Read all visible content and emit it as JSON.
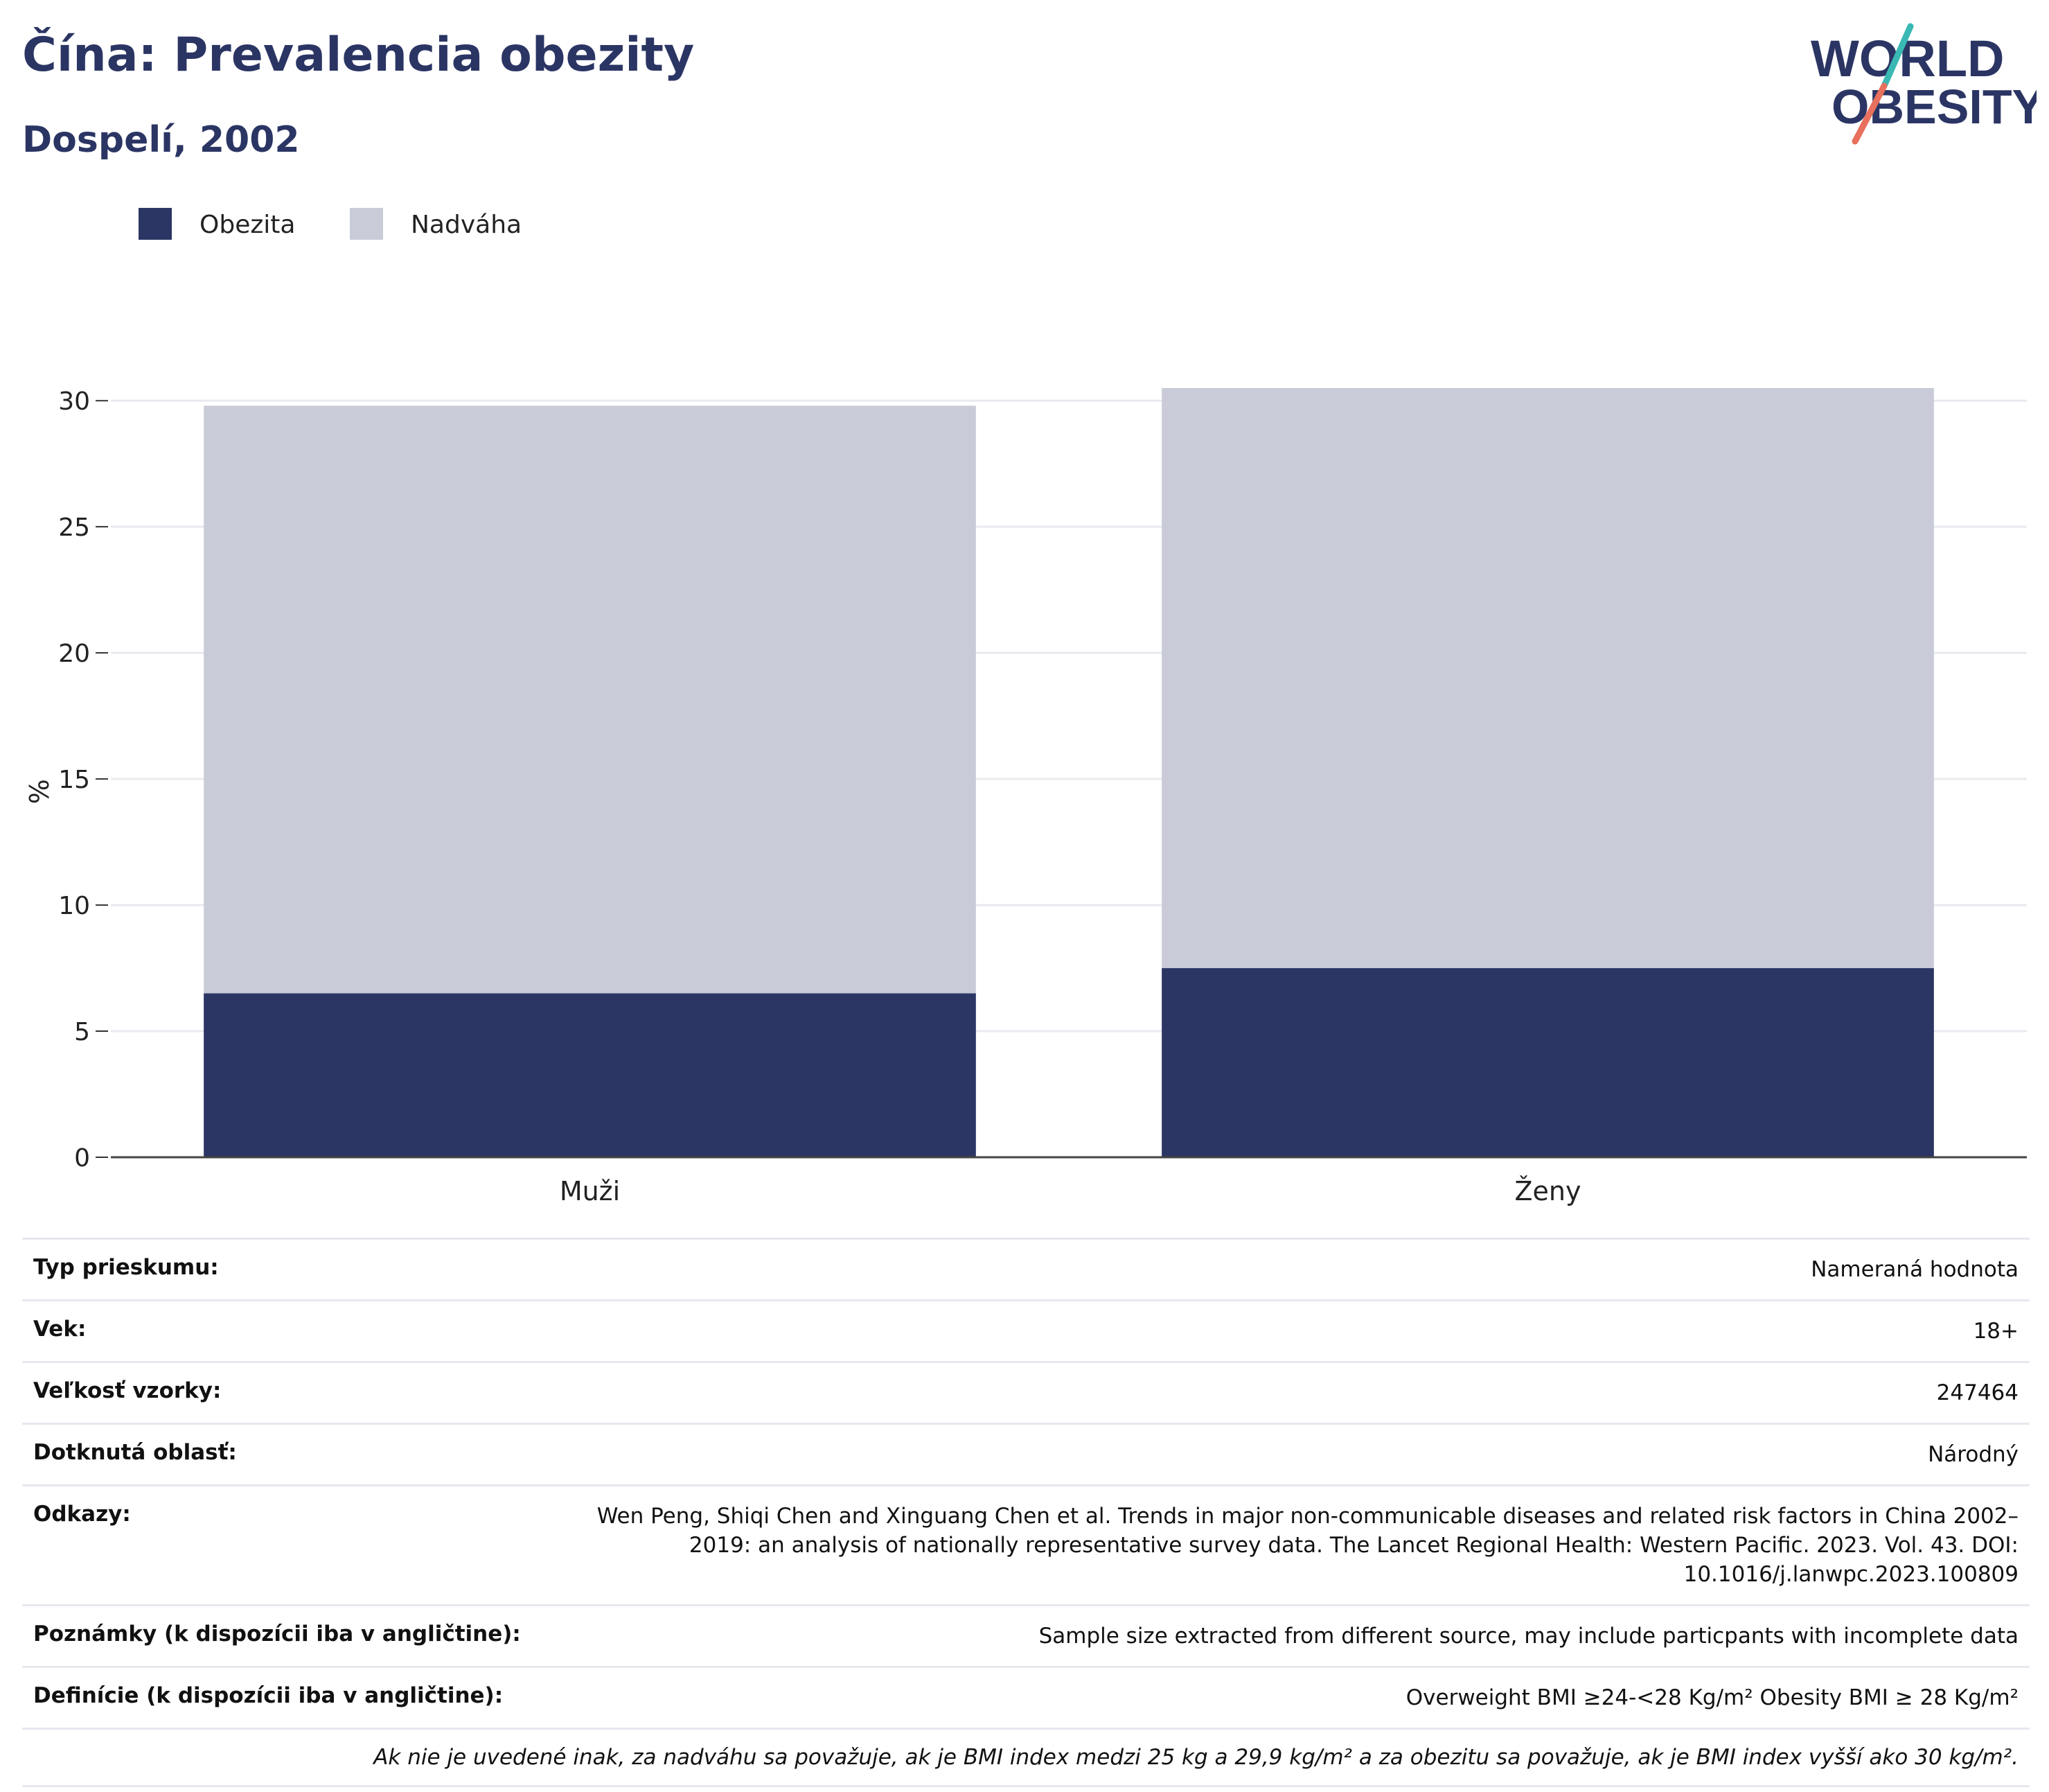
{
  "header": {
    "title": "Čína: Prevalencia obezity",
    "subtitle": "Dospelí, 2002",
    "logo_line1": "WORLD",
    "logo_line2": "OBESITY"
  },
  "colors": {
    "obesity": "#2b3664",
    "overweight": "#c9ccd8",
    "title": "#2b3564",
    "logo_teal": "#3ab8b3",
    "logo_coral": "#e8705d"
  },
  "chart_data": {
    "type": "bar",
    "stacked": true,
    "categories": [
      "Muži",
      "Ženy"
    ],
    "series": [
      {
        "name": "Obezita",
        "values": [
          6.5,
          7.5
        ]
      },
      {
        "name": "Nadváha",
        "values": [
          23.3,
          23.0
        ]
      }
    ],
    "ylabel": "%",
    "xlabel": "",
    "ylim": [
      0,
      30.5
    ],
    "yticks": [
      0,
      5,
      10,
      15,
      20,
      25,
      30
    ],
    "grid": true,
    "legend": "top-left"
  },
  "info": {
    "rows": [
      {
        "label": "Typ prieskumu:",
        "value": "Nameraná hodnota"
      },
      {
        "label": "Vek:",
        "value": "18+"
      },
      {
        "label": "Veľkosť vzorky:",
        "value": "247464"
      },
      {
        "label": "Dotknutá oblasť:",
        "value": "Národný"
      },
      {
        "label": "Odkazy:",
        "value": "Wen Peng, Shiqi Chen and Xinguang Chen et al. Trends in major non-communicable diseases and related risk factors in China 2002–2019: an analysis of nationally representative survey data. The Lancet Regional Health: Western Pacific. 2023. Vol. 43. DOI: 10.1016/j.lanwpc.2023.100809"
      },
      {
        "label": "Poznámky (k dispozícii iba v angličtine):",
        "value": "Sample size extracted from different source, may include particpants with incomplete data"
      },
      {
        "label": "Definície (k dispozícii iba v angličtine):",
        "value": "Overweight BMI ≥24-<28 Kg/m² Obesity BMI ≥ 28 Kg/m²"
      }
    ],
    "footnote": "Ak nie je uvedené inak, za nadváhu sa považuje, ak je BMI index medzi 25 kg a 29,9 kg/m² a za obezitu sa považuje, ak je BMI index vyšší ako 30 kg/m²."
  }
}
